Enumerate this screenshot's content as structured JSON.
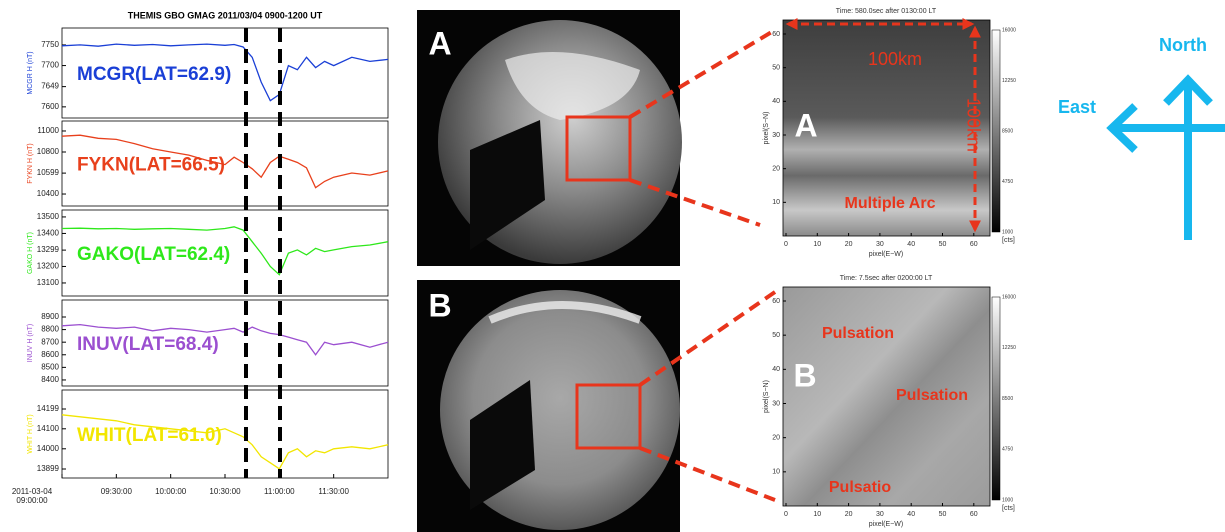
{
  "figure_title": "THEMIS GBO GMAG 2011/03/04 0900-1200 UT",
  "chart_data": [
    {
      "type": "line",
      "ylabel": "MCGR H (nT)",
      "annotation": "MCGR(LAT=62.9)",
      "color": "#1a3fd6",
      "x": [
        0,
        10,
        20,
        30,
        40,
        50,
        60,
        70,
        80,
        90,
        95,
        100,
        105,
        110,
        115,
        120,
        125,
        130,
        135,
        140,
        145,
        150,
        160,
        170,
        180
      ],
      "values": [
        7748,
        7750,
        7747,
        7752,
        7749,
        7751,
        7748,
        7750,
        7752,
        7749,
        7751,
        7745,
        7720,
        7660,
        7615,
        7630,
        7700,
        7690,
        7720,
        7695,
        7710,
        7700,
        7720,
        7710,
        7715
      ],
      "xlim": [
        0,
        180
      ],
      "ylim": [
        7573,
        7791
      ],
      "yticks": [
        7600,
        7649,
        7700,
        7750
      ]
    },
    {
      "type": "line",
      "ylabel": "FYKN H (nT)",
      "annotation": "FYKN(LAT=66.5)",
      "color": "#e8401c",
      "x": [
        0,
        10,
        20,
        30,
        40,
        50,
        60,
        70,
        80,
        90,
        95,
        100,
        105,
        110,
        115,
        120,
        125,
        130,
        135,
        140,
        145,
        150,
        160,
        170,
        180
      ],
      "values": [
        10950,
        10960,
        10930,
        10920,
        10880,
        10830,
        10800,
        10770,
        10720,
        10680,
        10750,
        10700,
        10640,
        10560,
        10700,
        10760,
        10730,
        10700,
        10650,
        10460,
        10520,
        10560,
        10600,
        10580,
        10620
      ],
      "xlim": [
        0,
        180
      ],
      "ylim": [
        10286,
        11095
      ],
      "yticks": [
        10400,
        10599,
        10800,
        11000
      ]
    },
    {
      "type": "line",
      "ylabel": "GAKO H (nT)",
      "annotation": "GAKO(LAT=62.4)",
      "color": "#2ee81a",
      "x": [
        0,
        10,
        20,
        30,
        40,
        50,
        60,
        70,
        80,
        90,
        95,
        100,
        105,
        110,
        115,
        120,
        125,
        130,
        135,
        140,
        145,
        150,
        160,
        170,
        180
      ],
      "values": [
        13430,
        13432,
        13428,
        13430,
        13425,
        13428,
        13430,
        13425,
        13420,
        13430,
        13440,
        13420,
        13350,
        13280,
        13200,
        13150,
        13280,
        13300,
        13270,
        13310,
        13290,
        13300,
        13320,
        13330,
        13350
      ],
      "xlim": [
        0,
        180
      ],
      "ylim": [
        13021,
        13542
      ],
      "yticks": [
        13100,
        13200,
        13299,
        13400,
        13500
      ]
    },
    {
      "type": "line",
      "ylabel": "INUV H (nT)",
      "annotation": "INUV(LAT=68.4)",
      "color": "#9b4fd0",
      "x": [
        0,
        10,
        20,
        30,
        40,
        50,
        60,
        70,
        80,
        90,
        95,
        100,
        105,
        110,
        115,
        120,
        125,
        130,
        135,
        140,
        145,
        150,
        160,
        170,
        180
      ],
      "values": [
        8830,
        8840,
        8820,
        8810,
        8820,
        8790,
        8810,
        8800,
        8780,
        8800,
        8810,
        8780,
        8820,
        8790,
        8770,
        8760,
        8740,
        8720,
        8700,
        8600,
        8700,
        8680,
        8700,
        8660,
        8700
      ],
      "xlim": [
        0,
        180
      ],
      "ylim": [
        8352,
        9035
      ],
      "yticks": [
        8400,
        8500,
        8600,
        8700,
        8800,
        8900
      ]
    },
    {
      "type": "line",
      "ylabel": "WHIT H (nT)",
      "annotation": "WHIT(LAT=61.0)",
      "color": "#f2e600",
      "x": [
        0,
        10,
        20,
        30,
        40,
        50,
        60,
        70,
        80,
        90,
        95,
        100,
        105,
        110,
        115,
        120,
        125,
        130,
        135,
        140,
        145,
        150,
        160,
        170,
        180
      ],
      "values": [
        14170,
        14160,
        14150,
        14140,
        14120,
        14110,
        14100,
        14090,
        14080,
        14100,
        14080,
        14060,
        14020,
        13960,
        13930,
        13900,
        13980,
        14000,
        13960,
        13990,
        13980,
        14000,
        14010,
        14000,
        14020
      ],
      "xlim": [
        0,
        180
      ],
      "ylim": [
        13854,
        14294
      ],
      "yticks": [
        13899,
        14000,
        14100,
        14199
      ],
      "xticks": [
        {
          "value": 0,
          "label": "2011-03-04 09:00:00"
        },
        {
          "value": 30,
          "label": "09:30:00"
        },
        {
          "value": 60,
          "label": "10:00:00"
        },
        {
          "value": 90,
          "label": "10:30:00"
        },
        {
          "value": 120,
          "label": "11:00:00"
        },
        {
          "value": 150,
          "label": "11:30:00"
        }
      ]
    }
  ],
  "image_labels": [
    "A",
    "B"
  ],
  "zoom_a": {
    "label": "A",
    "time": "Time: 580.0sec after 0130:00 LT",
    "xlabel": "pixel(E−W)",
    "ylabel": "pixel(S−N)",
    "xticks": [
      0,
      10,
      20,
      30,
      40,
      50,
      60
    ],
    "yticks": [
      10,
      20,
      30,
      40,
      50,
      60
    ],
    "colorbar": [
      1000,
      4750,
      8500,
      12250,
      16000
    ],
    "unit": "[cts]",
    "notes": [
      "100km",
      "100km",
      "Multiple Arc"
    ]
  },
  "zoom_b": {
    "label": "B",
    "time": "Time:    7.5sec after 0200:00 LT",
    "xlabel": "pixel(E−W)",
    "ylabel": "pixel(S−N)",
    "xticks": [
      0,
      10,
      20,
      30,
      40,
      50,
      60
    ],
    "yticks": [
      10,
      20,
      30,
      40,
      50,
      60
    ],
    "colorbar": [
      1000,
      4750,
      8500,
      12250,
      16000
    ],
    "unit": "[cts]",
    "notes": [
      "Pulsation",
      "Pulsation",
      "Pulsatio"
    ]
  },
  "compass": {
    "north": "North",
    "east": "East"
  }
}
